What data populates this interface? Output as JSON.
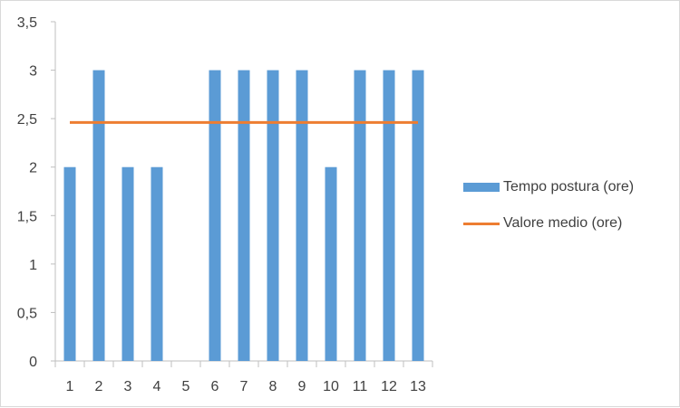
{
  "chart_data": {
    "type": "bar",
    "categories": [
      "1",
      "2",
      "3",
      "4",
      "5",
      "6",
      "7",
      "8",
      "9",
      "10",
      "11",
      "12",
      "13"
    ],
    "series": [
      {
        "name": "Tempo postura (ore)",
        "kind": "bar",
        "color": "#5b9bd5",
        "values": [
          2,
          3,
          2,
          2,
          0,
          3,
          3,
          3,
          3,
          2,
          3,
          3,
          3
        ]
      },
      {
        "name": "Valore medio (ore)",
        "kind": "line",
        "color": "#ed7d31",
        "values": [
          2.46,
          2.46,
          2.46,
          2.46,
          2.46,
          2.46,
          2.46,
          2.46,
          2.46,
          2.46,
          2.46,
          2.46,
          2.46
        ]
      }
    ],
    "y_ticks": [
      "0",
      "0,5",
      "1",
      "1,5",
      "2",
      "2,5",
      "3",
      "3,5"
    ],
    "ylim": [
      0,
      3.5
    ],
    "title": "",
    "xlabel": "",
    "ylabel": "",
    "grid": false,
    "legend_position": "right"
  }
}
